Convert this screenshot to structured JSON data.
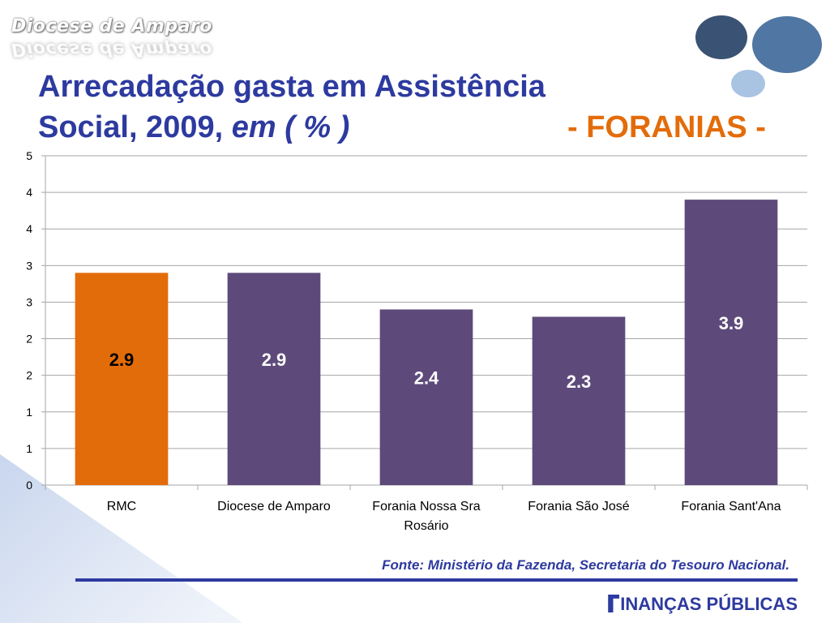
{
  "slide": {
    "brand": "Diocese de Amparo",
    "title_line1": "Arrecadação gasta em Assistência",
    "title_line2": "Social, 2009, ",
    "title_line2_italic": "em ( % )",
    "title_sub": "- FORANIAS -",
    "fonte": "Fonte: Ministério da Fazenda, Secretaria do Tesouro Nacional.",
    "footer_brand": "INANÇAS PÚBLICAS",
    "footer_letter": "F"
  },
  "colors": {
    "title": "#2d3a9f",
    "accent": "#e36c0a",
    "bar_rmc": "#e36c0a",
    "bar_other": "#5e4a7a"
  },
  "chart_data": {
    "type": "bar",
    "title": "",
    "xlabel": "",
    "ylabel": "",
    "categories": [
      "RMC",
      "Diocese de Amparo",
      "Forania Nossa Sra Rosário",
      "Forania São José",
      "Forania Sant'Ana"
    ],
    "category_lines": [
      [
        "RMC"
      ],
      [
        "Diocese de Amparo"
      ],
      [
        "Forania Nossa Sra",
        "Rosário"
      ],
      [
        "Forania São José"
      ],
      [
        "Forania Sant'Ana"
      ]
    ],
    "values": [
      2.9,
      2.9,
      2.4,
      2.3,
      3.9
    ],
    "value_labels": [
      "2.9",
      "2.9",
      "2.4",
      "2.3",
      "3.9"
    ],
    "bar_colors": [
      "#e36c0a",
      "#5e4a7a",
      "#5e4a7a",
      "#5e4a7a",
      "#5e4a7a"
    ],
    "label_colors": [
      "#000000",
      "#ffffff",
      "#ffffff",
      "#ffffff",
      "#ffffff"
    ],
    "ylim": [
      0,
      4.5
    ],
    "yticks": [
      0,
      0.5,
      1,
      1.5,
      2,
      2.5,
      3,
      3.5,
      4,
      4.5
    ],
    "ytick_labels": [
      "0",
      "1",
      "1",
      "2",
      "2",
      "3",
      "3",
      "4",
      "4",
      "5"
    ],
    "grid": true,
    "legend": "none"
  }
}
